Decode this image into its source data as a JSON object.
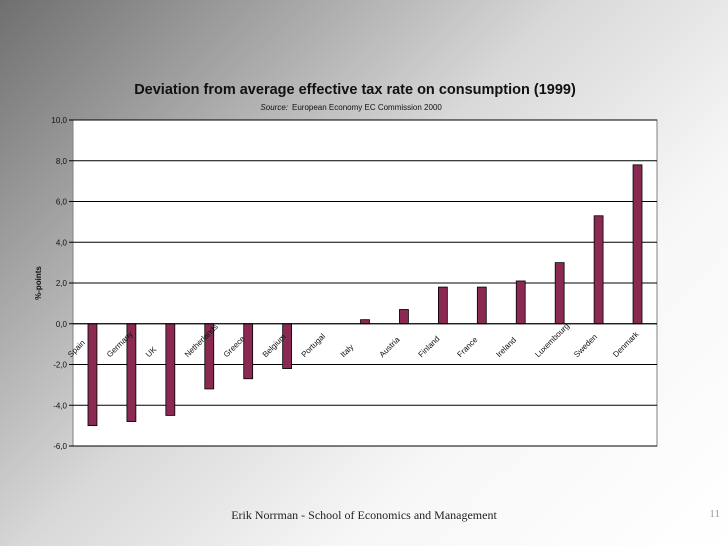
{
  "slide": {
    "footer": "Erik Norrman - School of Economics and Management",
    "page_number": "11"
  },
  "chart_data": {
    "type": "bar",
    "title": "Deviation from average effective tax rate on consumption (1999)",
    "subtitle_label": "Source:",
    "subtitle_text": "European Economy EC Commission 2000",
    "ylabel": "%-points",
    "xlabel": "",
    "ylim": [
      -6,
      10
    ],
    "yticks": [
      10,
      8,
      6,
      4,
      2,
      0,
      -2,
      -4,
      -6
    ],
    "ytick_labels": [
      "10,0",
      "8,0",
      "6,0",
      "4,0",
      "2,0",
      "0,0",
      "-2,0",
      "-4,0",
      "-6,0"
    ],
    "grid": true,
    "bar_color": "#8a2a52",
    "categories": [
      "Spain",
      "Germany",
      "UK",
      "Netherlands",
      "Greece",
      "Belgium",
      "Portugal",
      "Italy",
      "Austria",
      "Finland",
      "France",
      "Ireland",
      "Luxembourg",
      "Sweden",
      "Denmark"
    ],
    "values": [
      -5.0,
      -4.8,
      -4.5,
      -3.2,
      -2.7,
      -2.2,
      0.0,
      0.2,
      0.7,
      1.8,
      1.8,
      2.1,
      3.0,
      5.3,
      7.8
    ]
  }
}
